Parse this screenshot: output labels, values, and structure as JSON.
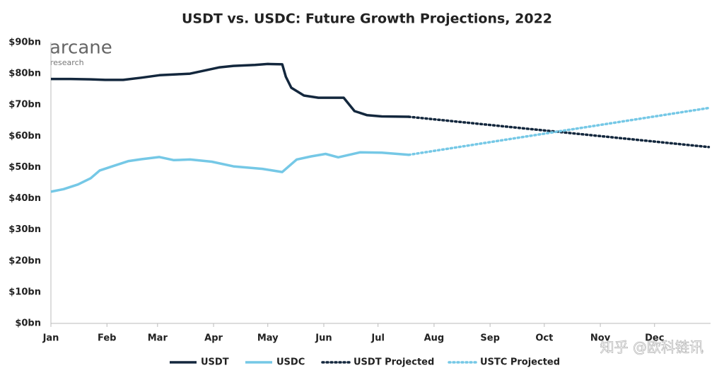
{
  "chart_data": {
    "type": "line",
    "title": "USDT vs. USDC: Future Growth Projections, 2022",
    "logo": {
      "name": "arcane",
      "sub": "research"
    },
    "watermark": "知乎 @欧科链讯",
    "xlim": [
      0,
      365
    ],
    "xticks": [
      {
        "value": 0,
        "label": "Jan"
      },
      {
        "value": 31,
        "label": "Feb"
      },
      {
        "value": 59,
        "label": "Mar"
      },
      {
        "value": 90,
        "label": "Apr"
      },
      {
        "value": 120,
        "label": "May"
      },
      {
        "value": 151,
        "label": "Jun"
      },
      {
        "value": 181,
        "label": "Jul"
      },
      {
        "value": 212,
        "label": "Aug"
      },
      {
        "value": 243,
        "label": "Sep"
      },
      {
        "value": 273,
        "label": "Oct"
      },
      {
        "value": 304,
        "label": "Nov"
      },
      {
        "value": 334,
        "label": "Dec"
      }
    ],
    "ylim": [
      0,
      90
    ],
    "yticks": [
      {
        "value": 0,
        "label": "$0bn"
      },
      {
        "value": 10,
        "label": "$10bn"
      },
      {
        "value": 20,
        "label": "$20bn"
      },
      {
        "value": 30,
        "label": "$30bn"
      },
      {
        "value": 40,
        "label": "$40bn"
      },
      {
        "value": 50,
        "label": "$50bn"
      },
      {
        "value": 60,
        "label": "$60bn"
      },
      {
        "value": 70,
        "label": "$70bn"
      },
      {
        "value": 80,
        "label": "$80bn"
      },
      {
        "value": 90,
        "label": "$90bn"
      }
    ],
    "grid": false,
    "legend": "bottom",
    "series": [
      {
        "name": "USDT",
        "color": "#13273d",
        "style": "solid",
        "x": [
          0,
          11,
          22,
          30,
          40,
          50,
          60,
          70,
          77,
          85,
          93,
          101,
          113,
          120,
          128,
          130,
          133,
          140,
          148,
          162,
          168,
          175,
          183,
          198
        ],
        "values": [
          78.3,
          78.3,
          78.2,
          78.0,
          78.0,
          78.7,
          79.5,
          79.8,
          80.0,
          81.0,
          82.0,
          82.5,
          82.8,
          83.1,
          83.0,
          79.0,
          75.5,
          73.0,
          72.3,
          72.3,
          68.0,
          66.7,
          66.3,
          66.2
        ]
      },
      {
        "name": "USDC",
        "color": "#75c8e6",
        "style": "solid",
        "x": [
          0,
          7,
          15,
          22,
          27,
          35,
          43,
          50,
          60,
          68,
          77,
          89,
          101,
          117,
          128,
          136,
          144,
          152,
          159,
          171,
          183,
          198
        ],
        "values": [
          42.2,
          43.0,
          44.5,
          46.5,
          49.0,
          50.5,
          52.0,
          52.6,
          53.3,
          52.3,
          52.5,
          51.8,
          50.3,
          49.5,
          48.5,
          52.5,
          53.5,
          54.3,
          53.2,
          54.8,
          54.7,
          54.0
        ]
      },
      {
        "name": "USDT Projected",
        "color": "#13273d",
        "style": "dotted",
        "x": [
          198,
          364
        ],
        "values": [
          66.2,
          56.5
        ]
      },
      {
        "name": "USTC Projected",
        "color": "#75c8e6",
        "style": "dotted",
        "x": [
          198,
          364
        ],
        "values": [
          54.0,
          69.0
        ]
      }
    ]
  }
}
